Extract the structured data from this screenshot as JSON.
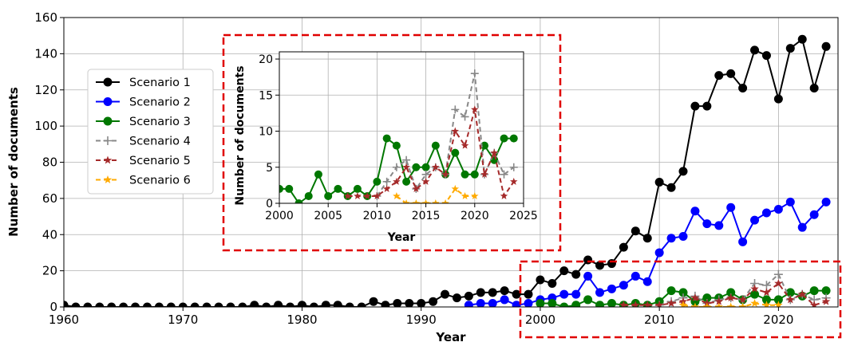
{
  "chart_data": [
    {
      "type": "line",
      "xlabel": "Year",
      "ylabel": "Number of documents",
      "xlim": [
        1960,
        2025
      ],
      "ylim": [
        0,
        160
      ],
      "xticks": [
        1960,
        1970,
        1980,
        1990,
        2000,
        2010,
        2020
      ],
      "yticks": [
        0,
        20,
        40,
        60,
        80,
        100,
        120,
        140,
        160
      ],
      "grid": true,
      "legend_position": "left",
      "series": [
        {
          "name": "Scenario 1",
          "color": "#000000",
          "style": "solid",
          "marker": "circle",
          "x": [
            1960,
            1961,
            1962,
            1963,
            1964,
            1965,
            1966,
            1967,
            1968,
            1969,
            1970,
            1971,
            1972,
            1973,
            1974,
            1975,
            1976,
            1977,
            1978,
            1979,
            1980,
            1981,
            1982,
            1983,
            1984,
            1985,
            1986,
            1987,
            1988,
            1989,
            1990,
            1991,
            1992,
            1993,
            1994,
            1995,
            1996,
            1997,
            1998,
            1999,
            2000,
            2001,
            2002,
            2003,
            2004,
            2005,
            2006,
            2007,
            2008,
            2009,
            2010,
            2011,
            2012,
            2013,
            2014,
            2015,
            2016,
            2017,
            2018,
            2019,
            2020,
            2021,
            2022,
            2023,
            2024
          ],
          "values": [
            1,
            0,
            0,
            0,
            0,
            0,
            0,
            0,
            0,
            0,
            0,
            0,
            0,
            0,
            0,
            0,
            1,
            0,
            1,
            0,
            1,
            0,
            1,
            1,
            0,
            0,
            3,
            1,
            2,
            2,
            2,
            3,
            7,
            5,
            6,
            8,
            8,
            9,
            7,
            7,
            15,
            13,
            20,
            18,
            26,
            23,
            24,
            33,
            42,
            38,
            69,
            66,
            75,
            111,
            111,
            128,
            129,
            121,
            142,
            139,
            115,
            143,
            148,
            121,
            144
          ]
        },
        {
          "name": "Scenario 2",
          "color": "#0000ff",
          "style": "solid",
          "marker": "circle",
          "x": [
            1994,
            1995,
            1996,
            1997,
            1998,
            1999,
            2000,
            2001,
            2002,
            2003,
            2004,
            2005,
            2006,
            2007,
            2008,
            2009,
            2010,
            2011,
            2012,
            2013,
            2014,
            2015,
            2016,
            2017,
            2018,
            2019,
            2020,
            2021,
            2022,
            2023,
            2024
          ],
          "values": [
            1,
            2,
            2,
            4,
            1,
            2,
            4,
            5,
            7,
            7,
            17,
            8,
            10,
            12,
            17,
            14,
            30,
            38,
            39,
            53,
            46,
            45,
            55,
            36,
            48,
            52,
            54,
            58,
            44,
            51,
            58
          ]
        },
        {
          "name": "Scenario 3",
          "color": "#007700",
          "style": "solid",
          "marker": "circle",
          "x": [
            2000,
            2001,
            2002,
            2003,
            2004,
            2005,
            2006,
            2007,
            2008,
            2009,
            2010,
            2011,
            2012,
            2013,
            2014,
            2015,
            2016,
            2017,
            2018,
            2019,
            2020,
            2021,
            2022,
            2023,
            2024
          ],
          "values": [
            2,
            2,
            0,
            1,
            4,
            1,
            2,
            1,
            2,
            1,
            3,
            9,
            8,
            3,
            5,
            5,
            8,
            4,
            7,
            4,
            4,
            8,
            6,
            9,
            9
          ]
        },
        {
          "name": "Scenario 4",
          "color": "#888888",
          "style": "dashed",
          "marker": "plus",
          "x": [
            2010,
            2011,
            2012,
            2013,
            2014,
            2015,
            2016,
            2017,
            2018,
            2019,
            2020,
            2021,
            2022,
            2023,
            2024
          ],
          "values": [
            1,
            3,
            5,
            6,
            2,
            4,
            5,
            4,
            13,
            12,
            18,
            4,
            7,
            4,
            5
          ]
        },
        {
          "name": "Scenario 5",
          "color": "#a52a2a",
          "style": "dashed",
          "marker": "star",
          "x": [
            2007,
            2008,
            2009,
            2010,
            2011,
            2012,
            2013,
            2014,
            2015,
            2016,
            2017,
            2018,
            2019,
            2020,
            2021,
            2022,
            2023,
            2024
          ],
          "values": [
            1,
            1,
            1,
            1,
            2,
            3,
            5,
            2,
            3,
            5,
            4,
            10,
            8,
            13,
            4,
            7,
            1,
            3
          ]
        },
        {
          "name": "Scenario 6",
          "color": "#ffaa00",
          "style": "dashed",
          "marker": "star",
          "x": [
            2012,
            2013,
            2014,
            2015,
            2016,
            2017,
            2018,
            2019,
            2020
          ],
          "values": [
            1,
            0,
            0,
            0,
            0,
            0,
            2,
            1,
            1
          ]
        }
      ]
    },
    {
      "type": "line",
      "role": "inset",
      "xlabel": "Year",
      "ylabel": "Number of documents",
      "xlim": [
        2000,
        2025
      ],
      "ylim": [
        0,
        21
      ],
      "xticks": [
        2000,
        2005,
        2010,
        2015,
        2020,
        2025
      ],
      "yticks": [
        0,
        5,
        10,
        15,
        20
      ],
      "grid": true,
      "series_from_main": [
        "Scenario 3",
        "Scenario 4",
        "Scenario 5",
        "Scenario 6"
      ]
    }
  ],
  "highlight_color": "#e00000"
}
